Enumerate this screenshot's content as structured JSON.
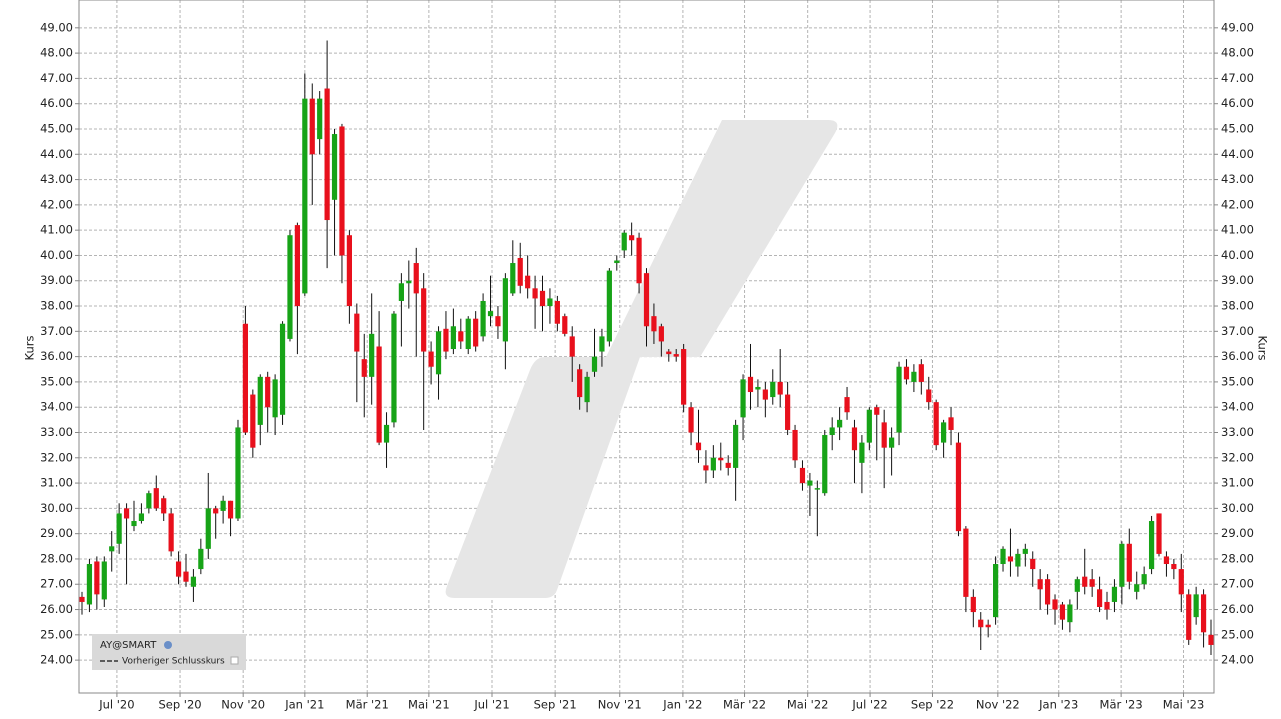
{
  "chart_data": {
    "type": "candlestick",
    "y_label": "Kurs",
    "legend": {
      "symbol": "AY@SMART",
      "line": "Vorheriger Schlusskurs"
    },
    "up_color": "#17a317",
    "down_color": "#e8101c",
    "grid": true,
    "ylim": [
      22.7,
      50.1
    ],
    "yticks": [
      {
        "value": 24,
        "label": "24.00"
      },
      {
        "value": 25,
        "label": "25.00"
      },
      {
        "value": 26,
        "label": "26.00"
      },
      {
        "value": 27,
        "label": "27.00"
      },
      {
        "value": 28,
        "label": "28.00"
      },
      {
        "value": 29,
        "label": "29.00"
      },
      {
        "value": 30,
        "label": "30.00"
      },
      {
        "value": 31,
        "label": "31.00"
      },
      {
        "value": 32,
        "label": "32.00"
      },
      {
        "value": 33,
        "label": "33.00"
      },
      {
        "value": 34,
        "label": "34.00"
      },
      {
        "value": 35,
        "label": "35.00"
      },
      {
        "value": 36,
        "label": "36.00"
      },
      {
        "value": 37,
        "label": "37.00"
      },
      {
        "value": 38,
        "label": "38.00"
      },
      {
        "value": 39,
        "label": "39.00"
      },
      {
        "value": 40,
        "label": "40.00"
      },
      {
        "value": 41,
        "label": "41.00"
      },
      {
        "value": 42,
        "label": "42.00"
      },
      {
        "value": 43,
        "label": "43.00"
      },
      {
        "value": 44,
        "label": "44.00"
      },
      {
        "value": 45,
        "label": "45.00"
      },
      {
        "value": 46,
        "label": "46.00"
      },
      {
        "value": 47,
        "label": "47.00"
      },
      {
        "value": 48,
        "label": "48.00"
      },
      {
        "value": 49,
        "label": "49.00"
      }
    ],
    "xticks": [
      {
        "value": 4.7,
        "label": "Jul '20"
      },
      {
        "value": 13.2,
        "label": "Sep '20"
      },
      {
        "value": 21.7,
        "label": "Nov '20"
      },
      {
        "value": 30.0,
        "label": "Jan '21"
      },
      {
        "value": 38.4,
        "label": "Mär '21"
      },
      {
        "value": 46.7,
        "label": "Mai '21"
      },
      {
        "value": 55.2,
        "label": "Jul '21"
      },
      {
        "value": 63.7,
        "label": "Sep '21"
      },
      {
        "value": 72.4,
        "label": "Nov '21"
      },
      {
        "value": 80.9,
        "label": "Jan '22"
      },
      {
        "value": 89.2,
        "label": "Mär '22"
      },
      {
        "value": 97.7,
        "label": "Mai '22"
      },
      {
        "value": 106.1,
        "label": "Jul '22"
      },
      {
        "value": 114.5,
        "label": "Sep '22"
      },
      {
        "value": 123.3,
        "label": "Nov '22"
      },
      {
        "value": 131.5,
        "label": "Jan '23"
      },
      {
        "value": 139.9,
        "label": "Mär '23"
      },
      {
        "value": 148.3,
        "label": "Mai '23"
      }
    ],
    "categories": [
      null,
      null,
      null,
      null,
      null,
      null,
      null,
      null,
      null,
      null,
      null,
      null,
      null,
      null,
      null,
      null,
      null,
      null,
      null,
      null,
      null,
      null,
      null,
      null,
      null,
      null,
      null,
      null,
      null,
      null,
      null,
      null,
      null,
      null,
      null,
      null,
      null,
      null,
      null,
      null,
      null,
      null,
      null,
      null,
      null,
      null,
      null,
      null,
      null,
      null,
      null,
      null,
      null,
      null,
      null,
      null,
      null,
      null,
      null,
      null,
      null,
      null,
      null,
      null,
      null,
      null,
      null,
      null,
      null,
      null,
      null,
      null,
      null,
      null,
      null,
      null,
      null,
      null,
      null,
      null,
      null,
      null,
      null,
      null,
      null,
      null,
      null,
      null,
      null,
      null,
      null,
      null,
      null,
      null,
      null,
      null,
      null,
      null,
      null,
      null,
      null,
      null,
      null,
      null,
      null,
      null,
      null,
      null,
      null,
      null,
      null,
      null,
      null,
      null,
      null,
      null,
      null,
      null,
      null,
      null,
      null,
      null,
      null,
      null,
      null,
      null,
      null,
      null,
      null,
      null,
      null,
      null,
      null,
      null,
      null,
      null,
      null,
      null,
      null,
      null,
      null,
      null,
      null,
      null,
      null,
      null,
      null,
      null,
      null,
      null,
      null,
      null,
      null
    ],
    "open": [
      26.5,
      26.2,
      27.9,
      26.4,
      28.3,
      28.6,
      30.0,
      29.3,
      29.5,
      30.0,
      30.8,
      30.4,
      29.8,
      27.9,
      27.5,
      26.9,
      27.6,
      28.4,
      30.0,
      29.9,
      30.3,
      29.6,
      37.3,
      34.5,
      33.3,
      35.2,
      33.6,
      33.7,
      36.7,
      41.2,
      38.5,
      46.2,
      44.6,
      46.6,
      42.2,
      45.1,
      40.8,
      37.7,
      35.9,
      35.2,
      36.4,
      32.6,
      33.4,
      38.2,
      38.9,
      39.7,
      38.7,
      36.2,
      35.3,
      37.1,
      36.3,
      37.0,
      36.3,
      37.5,
      36.8,
      37.6,
      37.6,
      36.6,
      38.5,
      39.9,
      39.2,
      38.7,
      38.6,
      38.0,
      38.2,
      37.6,
      36.8,
      35.5,
      34.2,
      35.4,
      36.2,
      36.6,
      39.7,
      40.2,
      40.8,
      40.7,
      39.3,
      37.6,
      37.2,
      36.2,
      36.1,
      36.3,
      34.0,
      32.6,
      31.7,
      31.5,
      32.0,
      31.8,
      31.6,
      33.6,
      35.2,
      34.7,
      34.7,
      34.4,
      35.0,
      34.5,
      33.1,
      31.6,
      30.9,
      30.8,
      30.6,
      32.9,
      33.2,
      34.4,
      33.2,
      31.8,
      32.6,
      34.0,
      33.4,
      32.4,
      33.0,
      35.6,
      35.0,
      35.7,
      34.7,
      34.2,
      32.6,
      33.6,
      32.6,
      29.2,
      26.5,
      25.6,
      25.4,
      25.7,
      27.8,
      28.1,
      27.7,
      28.2,
      28.0,
      27.2,
      27.2,
      26.4,
      26.2,
      25.5,
      26.7,
      27.3,
      27.2,
      26.8,
      26.3,
      26.3,
      26.9,
      28.6,
      26.7,
      27.0,
      27.6,
      29.8,
      28.1,
      27.8,
      27.6,
      26.6,
      25.7,
      26.6,
      25.0
    ],
    "high": [
      26.7,
      28.0,
      28.1,
      28.1,
      29.1,
      30.2,
      30.2,
      30.3,
      30.2,
      30.7,
      31.3,
      30.5,
      30.0,
      28.3,
      28.2,
      27.6,
      28.8,
      31.4,
      30.1,
      30.5,
      30.3,
      33.5,
      38.0,
      34.7,
      35.3,
      35.4,
      35.3,
      37.4,
      41.0,
      41.3,
      47.2,
      46.8,
      46.5,
      48.5,
      45.0,
      45.2,
      41.0,
      38.1,
      36.9,
      38.5,
      37.8,
      33.8,
      37.8,
      39.3,
      39.8,
      40.3,
      39.3,
      36.6,
      37.2,
      37.8,
      37.9,
      37.5,
      37.6,
      37.8,
      38.5,
      39.2,
      38.0,
      39.3,
      40.6,
      40.5,
      40.0,
      39.2,
      39.2,
      38.7,
      38.4,
      37.7,
      37.2,
      35.7,
      35.4,
      37.1,
      37.1,
      39.5,
      40.0,
      41.0,
      41.3,
      40.9,
      39.5,
      38.1,
      37.3,
      36.3,
      36.3,
      36.5,
      34.2,
      33.9,
      32.3,
      32.5,
      32.6,
      32.1,
      33.5,
      35.3,
      36.5,
      35.1,
      35.0,
      35.5,
      36.3,
      35.0,
      33.3,
      31.9,
      31.4,
      31.1,
      33.1,
      33.6,
      34.0,
      34.8,
      33.5,
      32.9,
      34.0,
      34.1,
      33.9,
      33.2,
      35.8,
      35.9,
      35.7,
      35.9,
      35.2,
      34.3,
      33.5,
      34.0,
      33.0,
      29.3,
      26.8,
      25.9,
      25.6,
      28.1,
      28.5,
      29.2,
      28.4,
      28.6,
      28.3,
      27.6,
      27.4,
      26.6,
      26.3,
      26.4,
      27.3,
      28.4,
      27.6,
      27.3,
      26.7,
      27.2,
      28.7,
      29.2,
      27.5,
      27.7,
      29.7,
      29.8,
      28.3,
      28.0,
      28.2,
      26.8,
      26.9,
      26.8,
      25.6
    ],
    "low": [
      25.8,
      25.9,
      26.0,
      26.1,
      27.5,
      28.2,
      27.0,
      29.1,
      29.4,
      29.8,
      29.9,
      29.5,
      28.1,
      27.0,
      26.9,
      26.3,
      27.4,
      28.0,
      28.8,
      29.4,
      28.9,
      29.5,
      32.9,
      32.0,
      32.5,
      33.0,
      32.9,
      33.3,
      36.6,
      36.1,
      38.4,
      42.0,
      44.0,
      39.5,
      40.0,
      38.9,
      37.3,
      34.2,
      33.6,
      34.1,
      32.5,
      31.6,
      33.2,
      36.4,
      37.9,
      36.0,
      33.1,
      34.9,
      34.3,
      35.9,
      36.1,
      36.3,
      36.1,
      36.2,
      36.6,
      37.2,
      36.7,
      35.5,
      38.4,
      38.5,
      38.3,
      37.1,
      37.0,
      37.3,
      37.0,
      36.8,
      35.0,
      33.9,
      33.8,
      35.2,
      35.6,
      36.4,
      39.4,
      39.9,
      40.0,
      38.5,
      36.4,
      36.5,
      36.0,
      35.8,
      35.8,
      33.8,
      32.5,
      31.8,
      31.0,
      31.2,
      31.5,
      31.3,
      30.3,
      32.7,
      33.9,
      34.0,
      33.6,
      34.1,
      34.0,
      32.9,
      31.6,
      30.7,
      29.7,
      28.9,
      30.5,
      32.3,
      32.7,
      33.5,
      31.0,
      30.6,
      32.3,
      31.9,
      30.8,
      31.3,
      32.5,
      34.9,
      34.6,
      34.5,
      33.9,
      32.3,
      32.0,
      32.5,
      28.9,
      25.9,
      25.3,
      24.4,
      24.9,
      25.4,
      27.5,
      27.3,
      27.3,
      27.7,
      26.9,
      26.0,
      25.8,
      25.4,
      25.2,
      25.1,
      26.0,
      26.6,
      26.5,
      25.9,
      25.6,
      25.9,
      26.2,
      26.8,
      26.4,
      26.8,
      27.4,
      28.1,
      27.3,
      27.2,
      25.9,
      24.6,
      25.4,
      24.5,
      24.2
    ],
    "close": [
      26.3,
      27.8,
      26.6,
      27.9,
      28.5,
      29.8,
      29.6,
      29.5,
      29.8,
      30.6,
      30.0,
      29.8,
      28.3,
      27.3,
      27.1,
      27.3,
      28.4,
      30.0,
      29.8,
      30.3,
      29.6,
      33.2,
      33.0,
      32.4,
      35.2,
      34.0,
      35.1,
      37.3,
      40.8,
      38.0,
      46.2,
      44.0,
      46.2,
      41.4,
      44.8,
      40.0,
      38.0,
      36.2,
      35.2,
      36.9,
      32.6,
      33.3,
      37.7,
      38.9,
      39.0,
      38.5,
      36.2,
      35.6,
      37.0,
      36.2,
      37.2,
      36.6,
      37.5,
      36.4,
      38.2,
      37.8,
      37.2,
      39.1,
      39.7,
      38.8,
      38.7,
      38.3,
      38.0,
      38.3,
      37.3,
      36.9,
      36.0,
      34.4,
      35.2,
      36.0,
      36.8,
      39.4,
      39.8,
      40.9,
      40.6,
      38.9,
      37.2,
      37.0,
      36.6,
      36.1,
      36.0,
      34.1,
      33.0,
      32.3,
      31.5,
      32.0,
      31.9,
      31.6,
      33.3,
      35.1,
      34.6,
      34.8,
      34.3,
      35.0,
      34.5,
      33.1,
      31.9,
      31.0,
      31.1,
      30.8,
      32.9,
      33.2,
      33.5,
      33.8,
      32.3,
      32.6,
      33.9,
      33.7,
      32.4,
      32.8,
      35.6,
      35.1,
      35.4,
      35.0,
      34.2,
      32.5,
      33.4,
      33.1,
      29.1,
      26.5,
      25.9,
      25.3,
      25.3,
      27.8,
      28.4,
      27.9,
      28.2,
      28.4,
      27.6,
      26.8,
      26.2,
      26.0,
      25.6,
      26.2,
      27.2,
      26.9,
      26.9,
      26.1,
      26.0,
      26.9,
      28.6,
      27.1,
      27.0,
      27.4,
      29.5,
      28.2,
      27.8,
      27.6,
      26.6,
      24.8,
      26.6,
      25.1,
      24.6
    ]
  }
}
